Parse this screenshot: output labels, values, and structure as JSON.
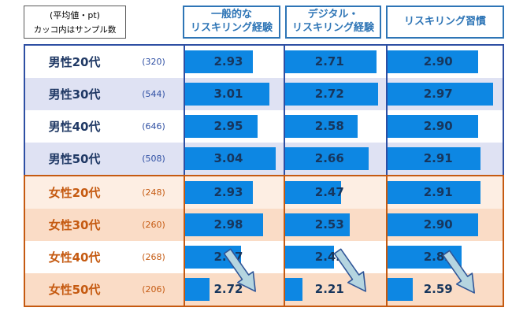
{
  "legend_box": {
    "line1": "(平均値・pt)",
    "line2": "カッコ内はサンプル数"
  },
  "columns": [
    {
      "line1": "一般的な",
      "line2": "リスキリング経験"
    },
    {
      "line1": "デジタル・",
      "line2": "リスキリング経験"
    },
    {
      "line1": "リスキリング習慣",
      "line2": ""
    }
  ],
  "rows": [
    {
      "label": "男性20代",
      "sample": "(320)",
      "values": [
        "2.93",
        "2.71",
        "2.90"
      ]
    },
    {
      "label": "男性30代",
      "sample": "(544)",
      "values": [
        "3.01",
        "2.72",
        "2.97"
      ]
    },
    {
      "label": "男性40代",
      "sample": "(646)",
      "values": [
        "2.95",
        "2.58",
        "2.90"
      ]
    },
    {
      "label": "男性50代",
      "sample": "(508)",
      "values": [
        "3.04",
        "2.66",
        "2.91"
      ]
    },
    {
      "label": "女性20代",
      "sample": "(248)",
      "values": [
        "2.93",
        "2.47",
        "2.91"
      ]
    },
    {
      "label": "女性30代",
      "sample": "(260)",
      "values": [
        "2.98",
        "2.53",
        "2.90"
      ]
    },
    {
      "label": "女性40代",
      "sample": "(268)",
      "values": [
        "2.87",
        "2.42",
        "2.82"
      ]
    },
    {
      "label": "女性50代",
      "sample": "(206)",
      "values": [
        "2.72",
        "2.21",
        "2.59"
      ]
    }
  ],
  "chart_data": {
    "type": "bar",
    "orientation": "horizontal",
    "unit": "pt",
    "categories": [
      "男性20代",
      "男性30代",
      "男性40代",
      "男性50代",
      "女性20代",
      "女性30代",
      "女性40代",
      "女性50代"
    ],
    "sample_sizes": [
      320,
      544,
      646,
      508,
      248,
      260,
      268,
      206
    ],
    "series": [
      {
        "name": "一般的なリスキリング経験",
        "values": [
          2.93,
          3.01,
          2.95,
          3.04,
          2.93,
          2.98,
          2.87,
          2.72
        ]
      },
      {
        "name": "デジタル・リスキリング経験",
        "values": [
          2.71,
          2.72,
          2.58,
          2.66,
          2.47,
          2.53,
          2.42,
          2.21
        ]
      },
      {
        "name": "リスキリング習慣",
        "values": [
          2.9,
          2.97,
          2.9,
          2.91,
          2.91,
          2.9,
          2.82,
          2.59
        ]
      }
    ],
    "bar_scaling": "per-column min-max data-bar style",
    "trend_arrows": [
      "一般的なリスキリング経験",
      "デジタル・リスキリング経験",
      "リスキリング習慣"
    ],
    "legend_position": "none",
    "grid": false
  },
  "colors": {
    "bar-fill": "#0d87e3",
    "value-text": "#17365d",
    "header-blue": "#2e75b6",
    "male-label": "#1f3864",
    "male-sample": "#2e4fa3",
    "male-border": "#2e4fa3",
    "male-alt-row": "#dfe2f3",
    "female-label": "#c55a11",
    "female-sample": "#c55a11",
    "female-border": "#c55a11",
    "female-alt-row": "#fadcc6",
    "female-light-row": "#fdeee3",
    "arrow-fill": "#b5d5e0",
    "arrow-stroke": "#2f5597"
  }
}
